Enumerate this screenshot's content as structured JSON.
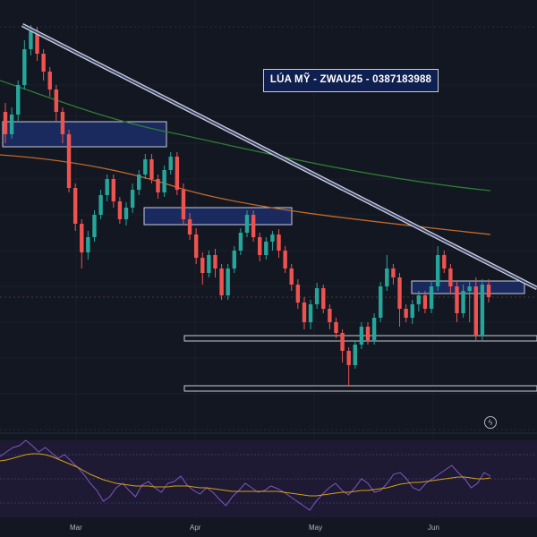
{
  "chart_title": "LÚA MỸ - ZWAU25 - 0387183988",
  "x_axis_labels": [
    "Mar",
    "Apr",
    "May",
    "Jun"
  ],
  "flash_icon": "lightning-bolt-icon",
  "colors": {
    "background": "#131722",
    "bull": "#26a69a",
    "bear": "#ef5350",
    "ma_slow": "#2e7d32",
    "ma_mid": "#c0692a",
    "rsi": "#7e57c2",
    "rsi_ma": "#d4a017",
    "zone_fill": "#1a2a5e",
    "zone_border": "#c8ccd8"
  },
  "chart_data": [
    {
      "type": "candlestick",
      "title": "LÚA MỸ - ZWAU25 - 0387183988",
      "x_labels": [
        "Mar",
        "Apr",
        "May",
        "Jun"
      ],
      "overlays": [
        "descending trendline",
        "moving average (green)",
        "moving average (orange)",
        "supply/demand zones",
        "horizontal support lines"
      ],
      "grid": true,
      "y_axis_labels_visible": false
    },
    {
      "type": "line",
      "name": "oscillator",
      "series_colors": [
        "#7e57c2",
        "#d4a017"
      ],
      "band": "shaded",
      "y_axis_labels_visible": false
    }
  ]
}
